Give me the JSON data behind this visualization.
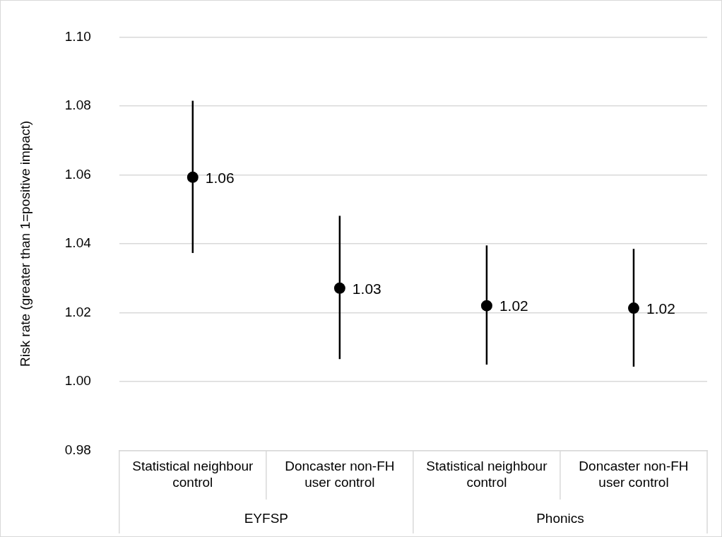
{
  "chart_data": {
    "type": "scatter",
    "ylabel": "Risk rate (greater than 1=positive impact)",
    "categories": [
      "Statistical neighbour control",
      "Doncaster non-FH user control",
      "Statistical neighbour control",
      "Doncaster non-FH user control"
    ],
    "series": [
      {
        "color": "#000000",
        "values": [
          1.0593,
          1.0271,
          1.022,
          1.0213
        ],
        "errors": [
          [
            1.0373,
            1.0815
          ],
          [
            1.0065,
            1.0481
          ],
          [
            1.0049,
            1.0395
          ],
          [
            1.0043,
            1.0385
          ]
        ],
        "value_labels": [
          "1.06",
          "1.03",
          "1.02",
          "1.02"
        ]
      }
    ],
    "ylim": [
      0.98,
      1.1
    ],
    "yticks": [
      0.98,
      {
        "value": 1.0,
        "label": "1.00"
      },
      1.02,
      1.04,
      1.06,
      1.08,
      {
        "value": 1.1,
        "label": "1.10"
      }
    ],
    "grid": "y",
    "legend": false,
    "marker": "circle",
    "annotations": [
      "EYFSP",
      "Phonics"
    ]
  }
}
